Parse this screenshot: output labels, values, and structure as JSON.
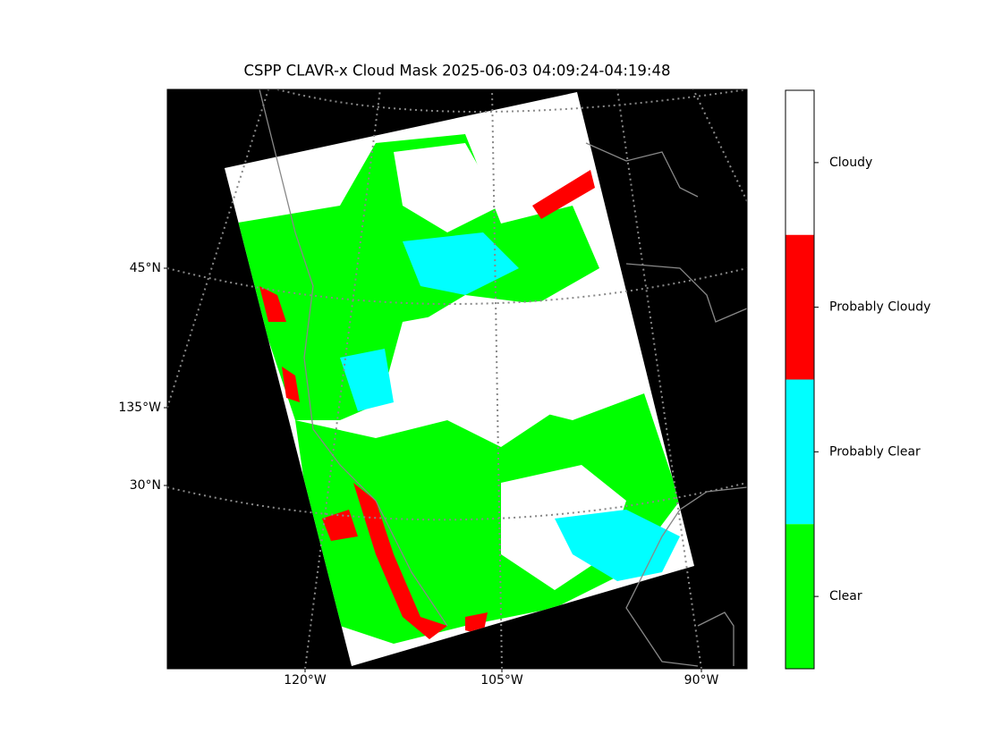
{
  "title": "CSPP CLAVR-x Cloud Mask 2025-06-03 04:09:24-04:19:48",
  "left_labels": [
    "45°N",
    "135°W",
    "30°N"
  ],
  "bottom_labels": [
    "120°W",
    "105°W",
    "90°W"
  ],
  "colorbar": {
    "classes": [
      {
        "label": "Cloudy",
        "color": "#ffffff"
      },
      {
        "label": "Probably Cloudy",
        "color": "#ff0000"
      },
      {
        "label": "Probably Clear",
        "color": "#00ffff"
      },
      {
        "label": "Clear",
        "color": "#00ff00"
      }
    ]
  }
}
